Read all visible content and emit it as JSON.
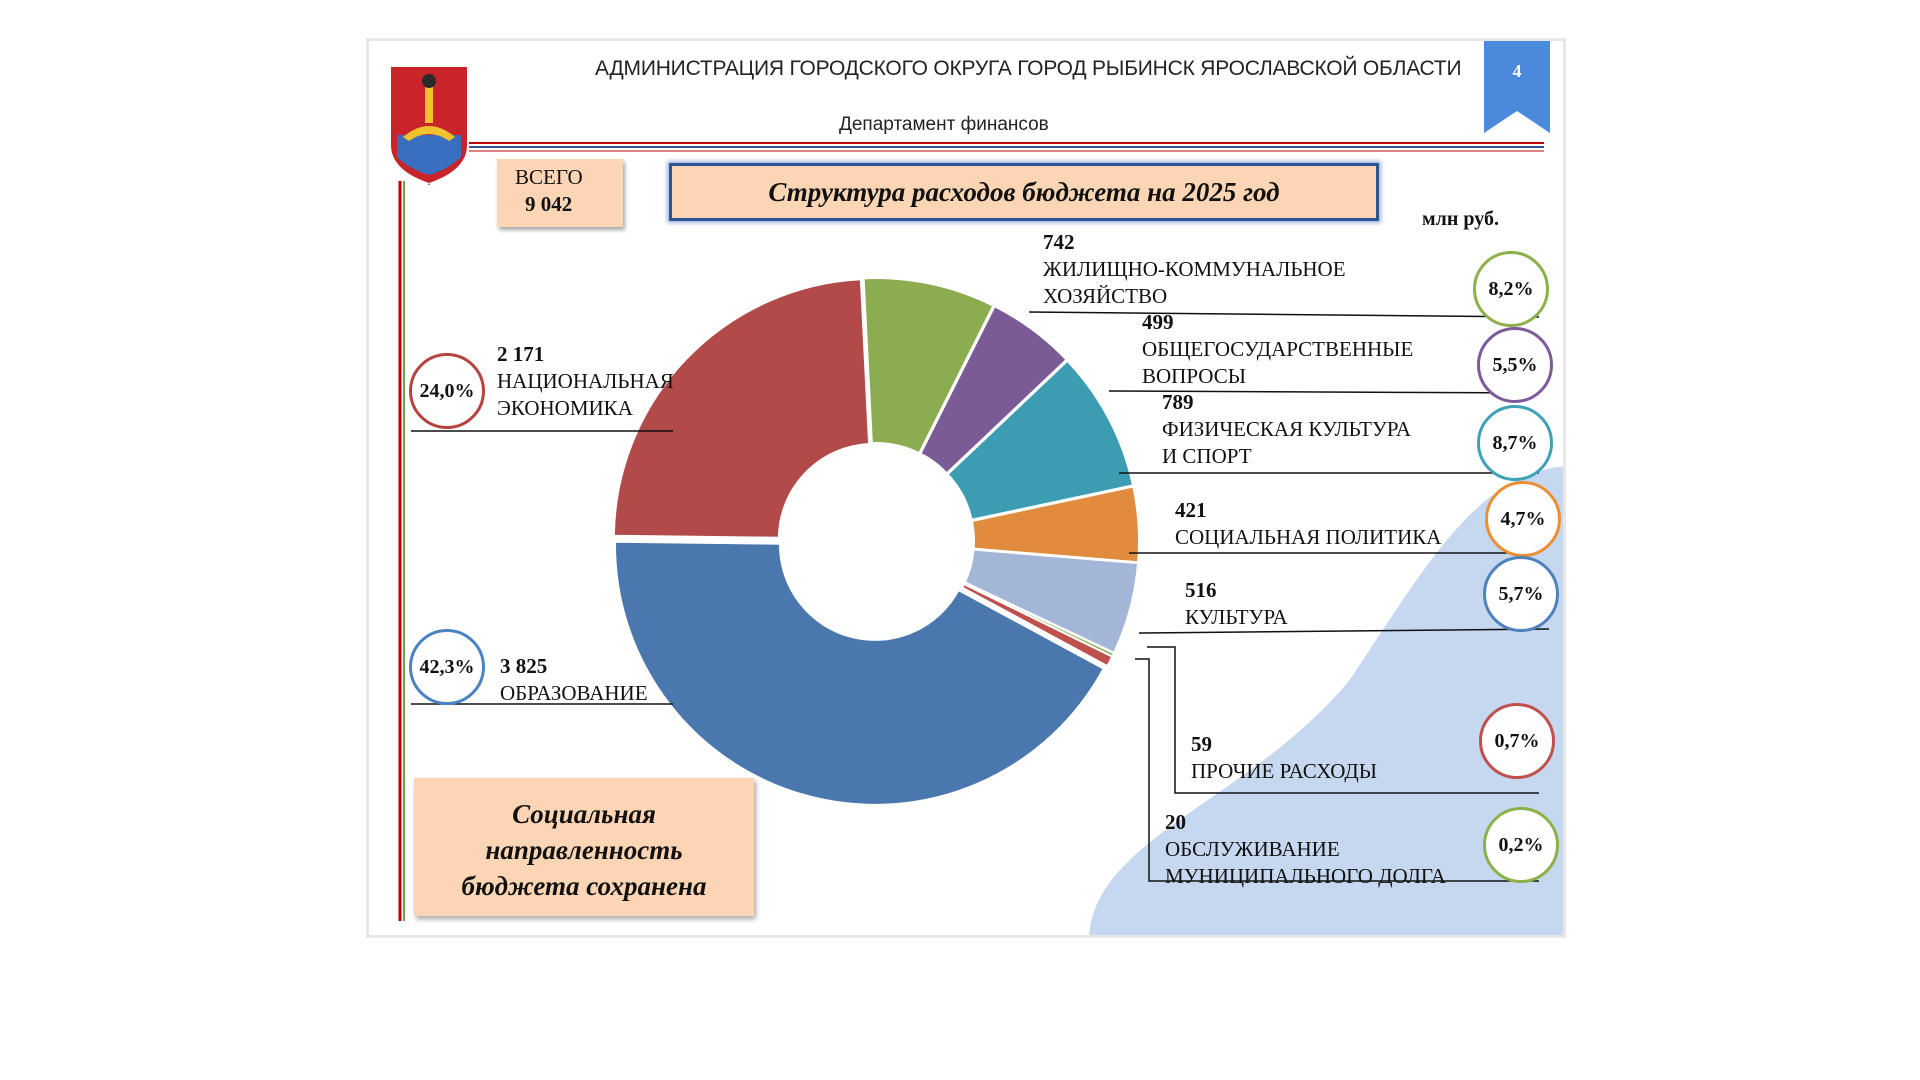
{
  "header": {
    "organization": "АДМИНИСТРАЦИЯ ГОРОДСКОГО ОКРУГА ГОРОД РЫБИНСК ЯРОСЛАВСКОЙ ОБЛАСТИ",
    "department": "Департамент финансов",
    "page_number": "4"
  },
  "total": {
    "label": "ВСЕГО",
    "value": "9 042"
  },
  "units": "млн руб.",
  "note": {
    "line1": "Социальная",
    "line2": "направленность",
    "line3": "бюджета сохранена"
  },
  "colors": {
    "accent_red": "#c00000",
    "accent_blue": "#2f5597",
    "box_fill": "#fcd5b5",
    "badge": "#4a89dc",
    "background_blob": "#c6d8ef"
  },
  "chart_data": {
    "type": "pie",
    "variant": "donut",
    "title": "Структура расходов бюджета на 2025 год",
    "units": "млн руб.",
    "total": 9042,
    "slices": [
      {
        "name": "НАЦИОНАЛЬНАЯ ЭКОНОМИКА",
        "name_lines": [
          "НАЦИОНАЛЬНАЯ",
          "ЭКОНОМИКА"
        ],
        "value": 2171,
        "value_label": "2 171",
        "percent": "24,0%",
        "color": "#b14a48",
        "ring": "#b5443f"
      },
      {
        "name": "ЖИЛИЩНО-КОММУНАЛЬНОЕ ХОЗЯЙСТВО",
        "name_lines": [
          "ЖИЛИЩНО-КОММУНАЛЬНОЕ",
          "ХОЗЯЙСТВО"
        ],
        "value": 742,
        "value_label": "742",
        "percent": "8,2%",
        "color": "#8cac50",
        "ring": "#8db04a"
      },
      {
        "name": "ОБЩЕГОСУДАРСТВЕННЫЕ ВОПРОСЫ",
        "name_lines": [
          "ОБЩЕГОСУДАРСТВЕННЫЕ",
          "ВОПРОСЫ"
        ],
        "value": 499,
        "value_label": "499",
        "percent": "5,5%",
        "color": "#7a5b96",
        "ring": "#7d5b9a"
      },
      {
        "name": "ФИЗИЧЕСКАЯ КУЛЬТУРА И СПОРТ",
        "name_lines": [
          "ФИЗИЧЕСКАЯ КУЛЬТУРА",
          "И СПОРТ"
        ],
        "value": 789,
        "value_label": "789",
        "percent": "8,7%",
        "color": "#3b9cb2",
        "ring": "#3ea2b7"
      },
      {
        "name": "СОЦИАЛЬНАЯ ПОЛИТИКА",
        "name_lines": [
          "СОЦИАЛЬНАЯ ПОЛИТИКА"
        ],
        "value": 421,
        "value_label": "421",
        "percent": "4,7%",
        "color": "#e08b3e",
        "ring": "#ec8f34"
      },
      {
        "name": "КУЛЬТУРА",
        "name_lines": [
          "КУЛЬТУРА"
        ],
        "value": 516,
        "value_label": "516",
        "percent": "5,7%",
        "color": "#a4b6d8",
        "ring": "#4f81bd"
      },
      {
        "name": "ОБСЛУЖИВАНИЕ МУНИЦИПАЛЬНОГО ДОЛГА",
        "name_lines": [
          "ОБСЛУЖИВАНИЕ",
          "МУНИЦИПАЛЬНОГО ДОЛГА"
        ],
        "value": 20,
        "value_label": "20",
        "percent": "0,2%",
        "color": "#8cac50",
        "ring": "#8db04a"
      },
      {
        "name": "ПРОЧИЕ РАСХОДЫ",
        "name_lines": [
          "ПРОЧИЕ РАСХОДЫ"
        ],
        "value": 59,
        "value_label": "59",
        "percent": "0,7%",
        "color": "#c0504d",
        "ring": "#c0504d"
      },
      {
        "name": "ОБРАЗОВАНИЕ",
        "name_lines": [
          "ОБРАЗОВАНИЕ"
        ],
        "value": 3825,
        "value_label": "3 825",
        "percent": "42,3%",
        "color": "#4a78ae",
        "ring": "#4a82c4"
      }
    ]
  }
}
